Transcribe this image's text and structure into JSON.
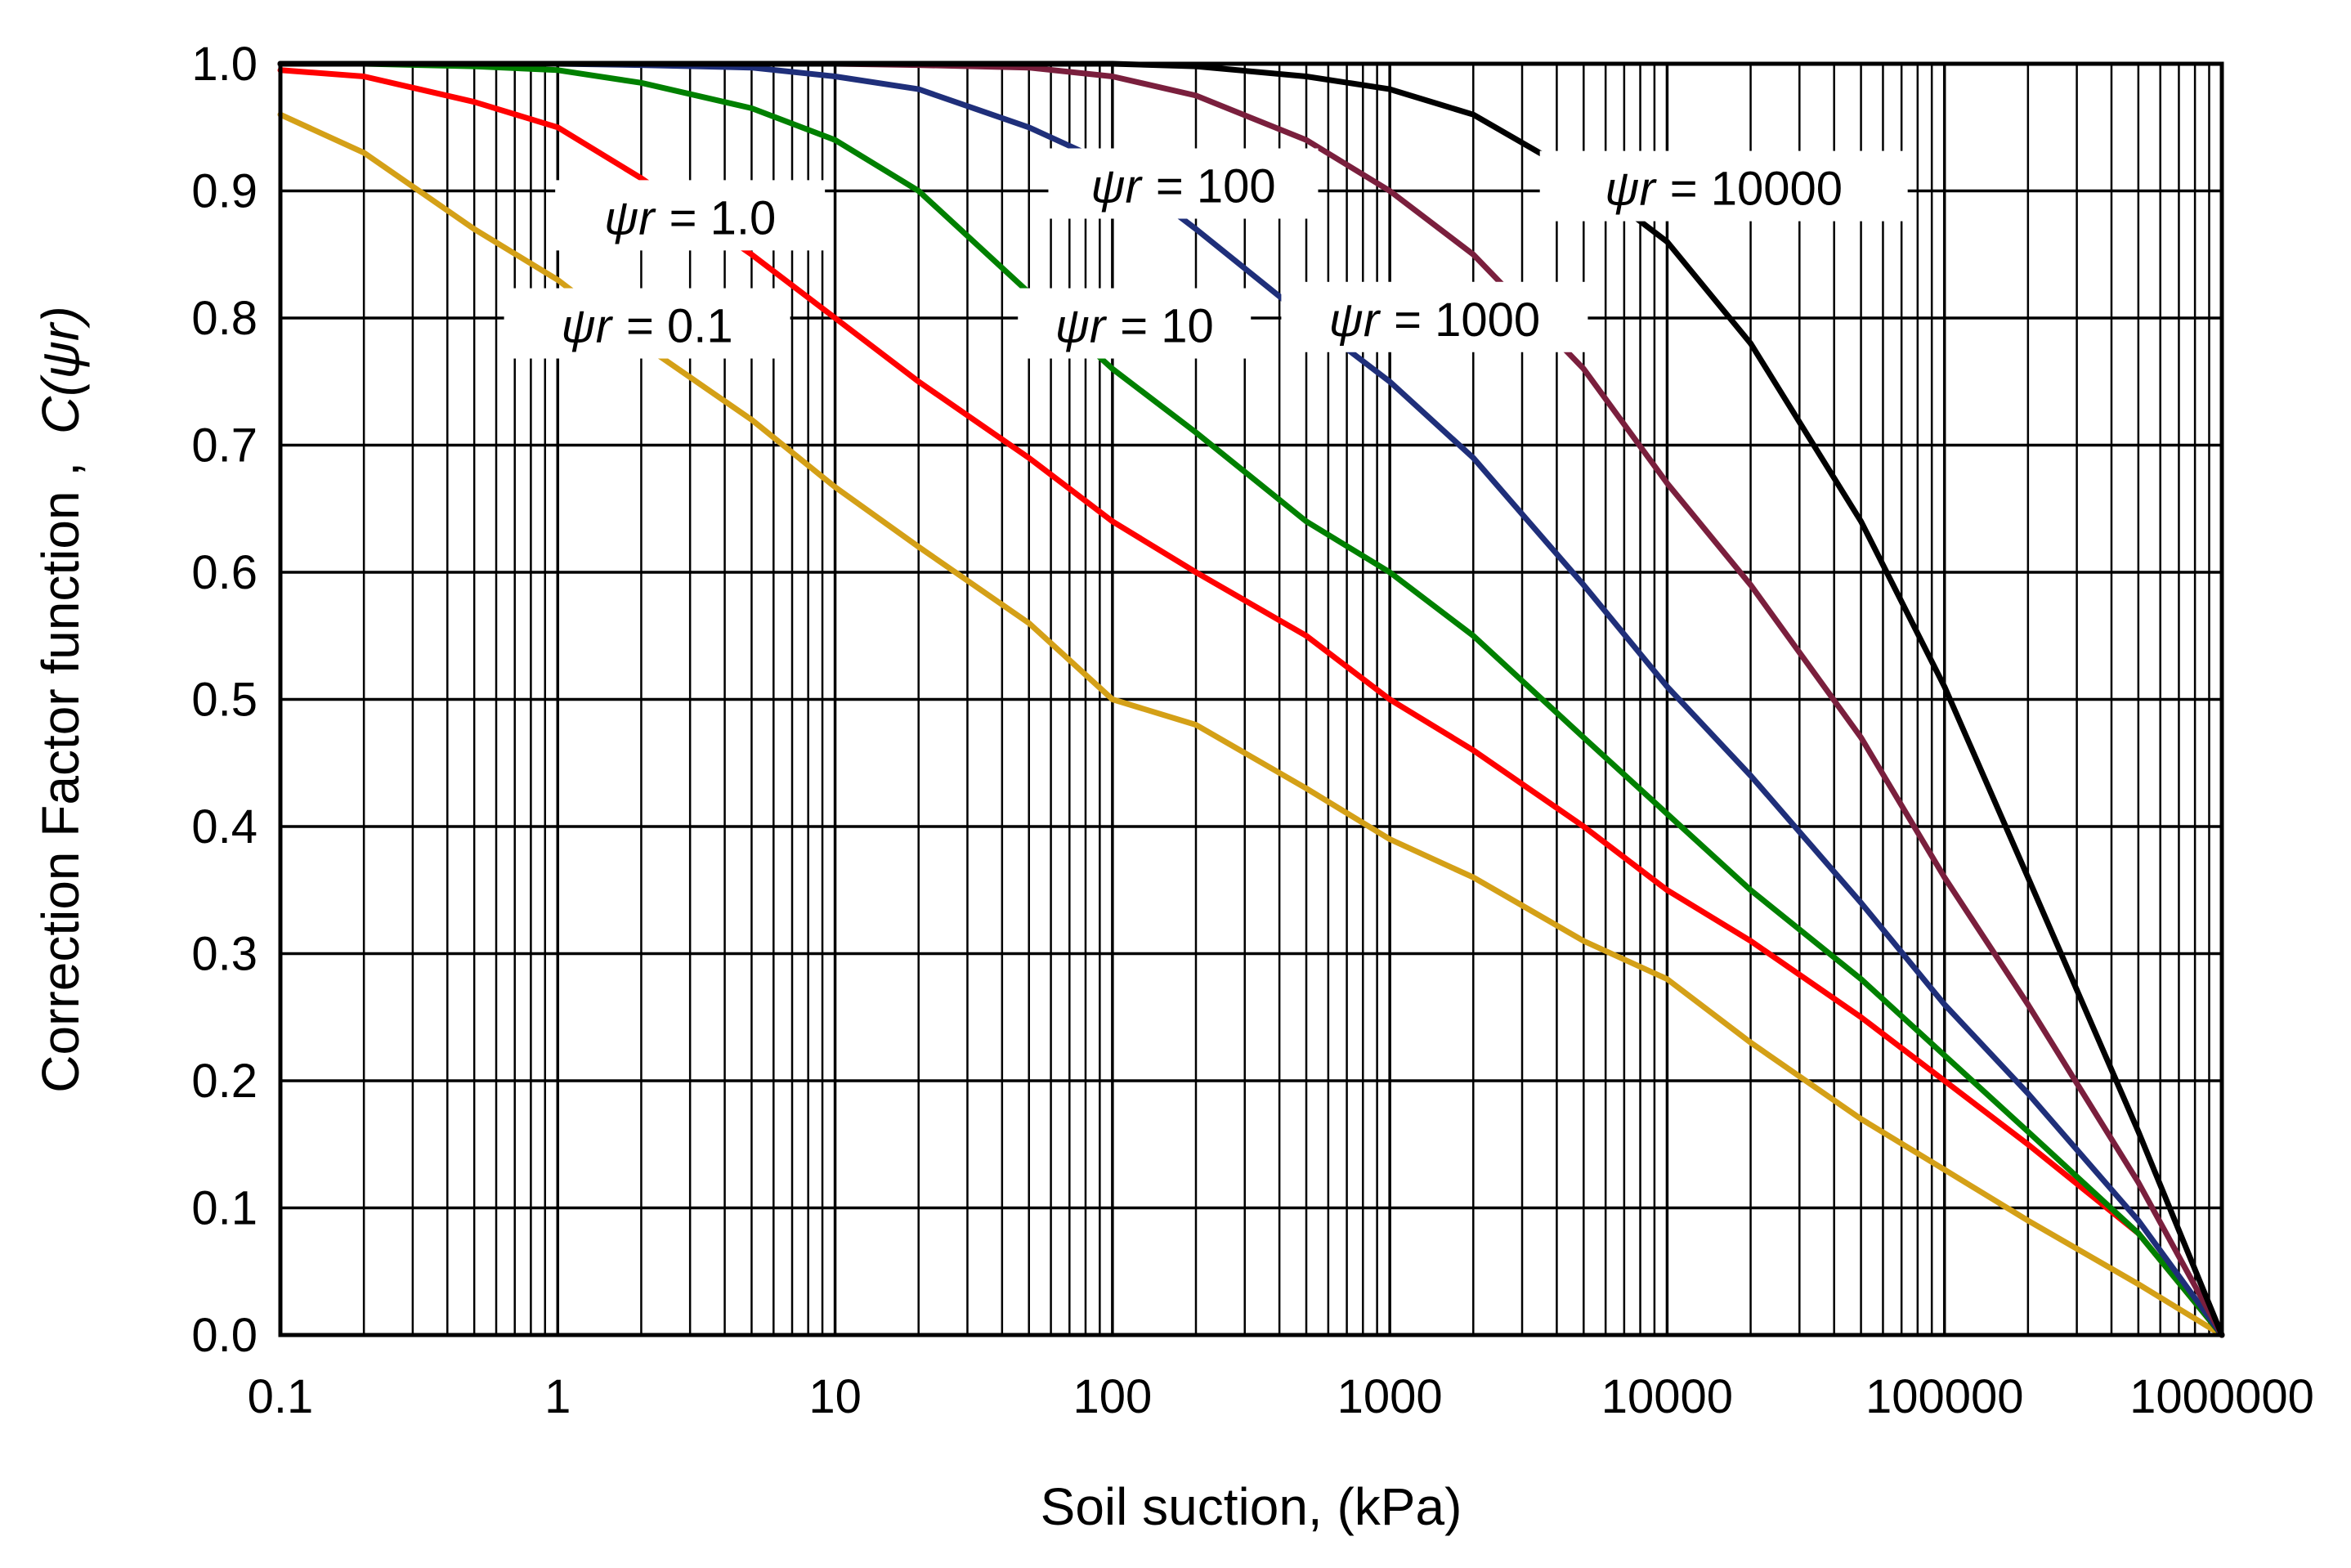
{
  "chart_data": {
    "type": "line",
    "title": "",
    "xlabel": "Soil suction, (kPa)",
    "ylabel": "Correction Factor function ,",
    "ylabel_symbol": "C(ψr)",
    "xscale": "log",
    "xlim": [
      0.1,
      1000000
    ],
    "ylim": [
      0,
      1
    ],
    "grid": true,
    "x_ticks": [
      "0.1",
      "1",
      "10",
      "100",
      "1000",
      "10000",
      "100000",
      "1000000"
    ],
    "y_ticks": [
      "0.0",
      "0.1",
      "0.2",
      "0.3",
      "0.4",
      "0.5",
      "0.6",
      "0.7",
      "0.8",
      "0.9",
      "1.0"
    ],
    "series": [
      {
        "name": "ψr = 0.1",
        "symbol": "ψr",
        "label_value": "=  0.1",
        "color": "#d4a017",
        "x": [
          0.1,
          0.2,
          0.5,
          1,
          2,
          5,
          10,
          20,
          50,
          100,
          200,
          500,
          1000,
          2000,
          5000,
          10000,
          20000,
          50000,
          100000,
          200000,
          500000,
          1000000
        ],
        "y": [
          0.96,
          0.93,
          0.87,
          0.83,
          0.78,
          0.72,
          0.667,
          0.62,
          0.56,
          0.5,
          0.48,
          0.43,
          0.39,
          0.36,
          0.31,
          0.28,
          0.23,
          0.17,
          0.13,
          0.09,
          0.04,
          0.0
        ]
      },
      {
        "name": "ψr = 1.0",
        "symbol": "ψr",
        "label_value": "= 1.0",
        "color": "#ff0000",
        "x": [
          0.1,
          0.2,
          0.5,
          1,
          2,
          5,
          10,
          20,
          50,
          100,
          200,
          500,
          1000,
          2000,
          5000,
          10000,
          20000,
          50000,
          100000,
          200000,
          500000,
          1000000
        ],
        "y": [
          0.995,
          0.99,
          0.97,
          0.95,
          0.91,
          0.85,
          0.8,
          0.75,
          0.69,
          0.64,
          0.6,
          0.55,
          0.5,
          0.46,
          0.4,
          0.35,
          0.31,
          0.25,
          0.2,
          0.15,
          0.08,
          0.0
        ]
      },
      {
        "name": "ψr = 10",
        "symbol": "ψr",
        "label_value": "= 10",
        "color": "#008000",
        "x": [
          0.1,
          0.2,
          0.5,
          1,
          2,
          5,
          10,
          20,
          50,
          100,
          200,
          500,
          1000,
          2000,
          5000,
          10000,
          20000,
          50000,
          100000,
          200000,
          500000,
          1000000
        ],
        "y": [
          1.0,
          1.0,
          0.998,
          0.995,
          0.985,
          0.965,
          0.94,
          0.9,
          0.82,
          0.76,
          0.71,
          0.64,
          0.6,
          0.55,
          0.47,
          0.41,
          0.35,
          0.28,
          0.22,
          0.16,
          0.08,
          0.0
        ]
      },
      {
        "name": "ψr = 100",
        "symbol": "ψr",
        "label_value": "= 100",
        "color": "#1f2f7a",
        "x": [
          0.1,
          0.2,
          0.5,
          1,
          2,
          5,
          10,
          20,
          50,
          100,
          200,
          500,
          1000,
          2000,
          5000,
          10000,
          20000,
          50000,
          100000,
          200000,
          500000,
          1000000
        ],
        "y": [
          1.0,
          1.0,
          1.0,
          1.0,
          0.999,
          0.997,
          0.99,
          0.98,
          0.95,
          0.92,
          0.87,
          0.8,
          0.75,
          0.69,
          0.59,
          0.51,
          0.44,
          0.34,
          0.26,
          0.19,
          0.09,
          0.0
        ]
      },
      {
        "name": "ψr = 1000",
        "symbol": "ψr",
        "label_value": "= 1000",
        "color": "#7a1f3d",
        "x": [
          0.1,
          0.2,
          0.5,
          1,
          2,
          5,
          10,
          20,
          50,
          100,
          200,
          500,
          1000,
          2000,
          5000,
          10000,
          20000,
          50000,
          100000,
          200000,
          500000,
          1000000
        ],
        "y": [
          1.0,
          1.0,
          1.0,
          1.0,
          1.0,
          1.0,
          1.0,
          0.999,
          0.997,
          0.99,
          0.975,
          0.94,
          0.9,
          0.85,
          0.76,
          0.67,
          0.59,
          0.47,
          0.36,
          0.26,
          0.12,
          0.0
        ]
      },
      {
        "name": "ψr = 10000",
        "symbol": "ψr",
        "label_value": "= 10000",
        "color": "#000000",
        "x": [
          0.1,
          0.2,
          0.5,
          1,
          2,
          5,
          10,
          20,
          50,
          100,
          200,
          500,
          1000,
          2000,
          5000,
          10000,
          20000,
          50000,
          100000,
          200000,
          500000,
          1000000
        ],
        "y": [
          1.0,
          1.0,
          1.0,
          1.0,
          1.0,
          1.0,
          1.0,
          1.0,
          1.0,
          1.0,
          0.998,
          0.99,
          0.98,
          0.96,
          0.91,
          0.86,
          0.78,
          0.64,
          0.51,
          0.36,
          0.16,
          0.0
        ]
      }
    ]
  }
}
